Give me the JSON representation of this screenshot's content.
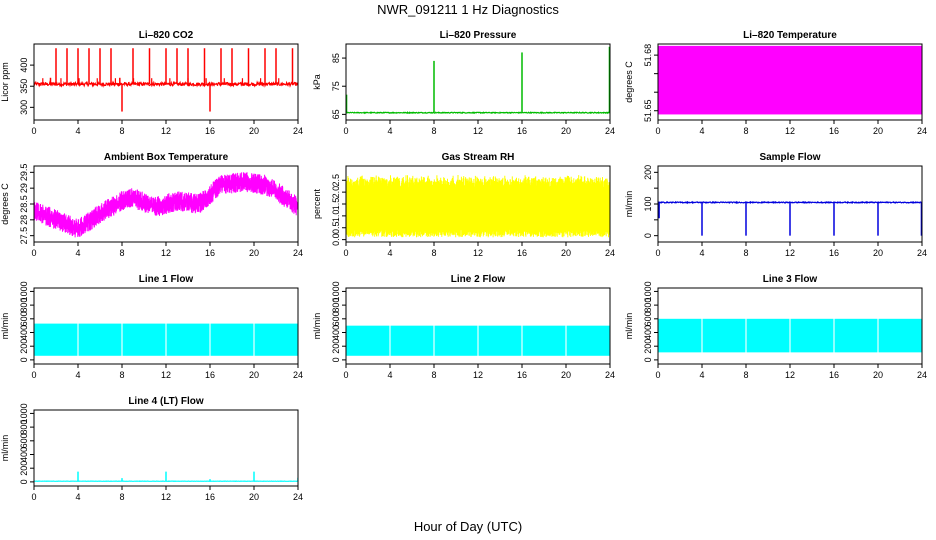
{
  "title": "NWR_091211  1 Hz Diagnostics",
  "xlabel": "Hour of Day (UTC)",
  "chart_data": [
    {
      "type": "line",
      "title": "Li–820 CO2",
      "ylabel": "Licor ppm",
      "color": "#ff0000",
      "xlim": [
        0,
        24
      ],
      "xticks": [
        0,
        4,
        8,
        12,
        16,
        20,
        24
      ],
      "ylim": [
        270,
        450
      ],
      "yticks": [
        300,
        350,
        400
      ],
      "pattern": "co2",
      "base": 355,
      "noise": 8,
      "spikes": [
        {
          "x": 1.5,
          "y": 370
        },
        {
          "x": 2.0,
          "y": 440
        },
        {
          "x": 3.0,
          "y": 440
        },
        {
          "x": 4.0,
          "y": 440
        },
        {
          "x": 5.0,
          "y": 440
        },
        {
          "x": 6.0,
          "y": 440
        },
        {
          "x": 7.0,
          "y": 440
        },
        {
          "x": 7.8,
          "y": 370
        },
        {
          "x": 8.0,
          "y": 290
        },
        {
          "x": 9.0,
          "y": 440
        },
        {
          "x": 10.5,
          "y": 440
        },
        {
          "x": 12.0,
          "y": 440
        },
        {
          "x": 13.0,
          "y": 440
        },
        {
          "x": 14.0,
          "y": 440
        },
        {
          "x": 15.5,
          "y": 440
        },
        {
          "x": 16.0,
          "y": 290
        },
        {
          "x": 17.0,
          "y": 440
        },
        {
          "x": 18.0,
          "y": 440
        },
        {
          "x": 19.5,
          "y": 440
        },
        {
          "x": 21.0,
          "y": 440
        },
        {
          "x": 22.0,
          "y": 440
        },
        {
          "x": 23.5,
          "y": 440
        }
      ]
    },
    {
      "type": "line",
      "title": "Li–820 Pressure",
      "ylabel": "kPa",
      "color": "#00bb00",
      "xlim": [
        0,
        24
      ],
      "xticks": [
        0,
        4,
        8,
        12,
        16,
        20,
        24
      ],
      "ylim": [
        63,
        90
      ],
      "yticks": [
        65,
        75,
        85
      ],
      "pattern": "pressure",
      "base": 65.6,
      "noise": 0.3,
      "spikes": [
        {
          "x": 0.05,
          "y": 72
        },
        {
          "x": 8.0,
          "y": 84
        },
        {
          "x": 16.0,
          "y": 87
        },
        {
          "x": 23.95,
          "y": 89
        }
      ]
    },
    {
      "type": "area",
      "title": "Li–820 Temperature",
      "ylabel": "degrees C",
      "color": "#ff00ff",
      "xlim": [
        0,
        24
      ],
      "xticks": [
        0,
        4,
        8,
        12,
        16,
        20,
        24
      ],
      "ylim": [
        51.645,
        51.686
      ],
      "yticks": [
        51.65,
        51.66,
        51.67,
        51.68
      ],
      "yticklabels": [
        "51.65",
        "",
        "",
        "51.68"
      ],
      "pattern": "fill",
      "band": [
        51.648,
        51.685
      ],
      "end": {
        "x": 24,
        "low": 51.648,
        "high": 51.67
      }
    },
    {
      "type": "line",
      "title": "Ambient Box Temperature",
      "ylabel": "degrees C",
      "color": "#ff00ff",
      "xlim": [
        0,
        24
      ],
      "xticks": [
        0,
        4,
        8,
        12,
        16,
        20,
        24
      ],
      "ylim": [
        27.3,
        29.7
      ],
      "yticks": [
        27.5,
        28,
        28.5,
        29,
        29.5
      ],
      "yticklabels": [
        "27.5",
        "28",
        "28.5",
        "29",
        "29.5"
      ],
      "pattern": "ambient",
      "curve": [
        {
          "x": 0,
          "y": 28.3
        },
        {
          "x": 2,
          "y": 28.0
        },
        {
          "x": 4,
          "y": 27.7
        },
        {
          "x": 6,
          "y": 28.2
        },
        {
          "x": 8,
          "y": 28.6
        },
        {
          "x": 9,
          "y": 28.7
        },
        {
          "x": 11,
          "y": 28.4
        },
        {
          "x": 13,
          "y": 28.6
        },
        {
          "x": 15,
          "y": 28.5
        },
        {
          "x": 17,
          "y": 29.1
        },
        {
          "x": 19,
          "y": 29.2
        },
        {
          "x": 21,
          "y": 29.1
        },
        {
          "x": 22.5,
          "y": 28.8
        },
        {
          "x": 24,
          "y": 28.4
        }
      ],
      "noise": 0.32
    },
    {
      "type": "line",
      "title": "Gas Stream RH",
      "ylabel": "percent",
      "color": "#ffff00",
      "xlim": [
        0,
        24
      ],
      "xticks": [
        0,
        4,
        8,
        12,
        16,
        20,
        24
      ],
      "ylim": [
        -0.1,
        3.1
      ],
      "yticks": [
        0,
        0.5,
        1,
        1.5,
        2,
        2.5
      ],
      "yticklabels": [
        "0.0",
        "0.5",
        "1.0",
        "1.5",
        "2.0",
        "2.5"
      ],
      "pattern": "band",
      "band": [
        0.1,
        2.6
      ],
      "noise": 0.3
    },
    {
      "type": "line",
      "title": "Sample Flow",
      "ylabel": "ml/min",
      "color": "#0000dd",
      "xlim": [
        0,
        24
      ],
      "xticks": [
        0,
        4,
        8,
        12,
        16,
        20,
        24
      ],
      "ylim": [
        -20,
        220
      ],
      "yticks": [
        0,
        50,
        100,
        150,
        200
      ],
      "yticklabels": [
        "0",
        "",
        "100",
        "",
        "200"
      ],
      "pattern": "flow",
      "base": 105,
      "noise": 3,
      "dips": [
        {
          "x": 0.1,
          "y": 55
        },
        {
          "x": 4.0,
          "y": 0
        },
        {
          "x": 8.0,
          "y": 0
        },
        {
          "x": 12.0,
          "y": 0
        },
        {
          "x": 16.0,
          "y": 0
        },
        {
          "x": 20.0,
          "y": 0
        },
        {
          "x": 23.95,
          "y": 0
        }
      ]
    },
    {
      "type": "area",
      "title": "Line 1 Flow",
      "ylabel": "ml/min",
      "color": "#00ffff",
      "xlim": [
        0,
        24
      ],
      "xticks": [
        0,
        4,
        8,
        12,
        16,
        20,
        24
      ],
      "ylim": [
        -60,
        1050
      ],
      "yticks": [
        0,
        200,
        400,
        600,
        800,
        1000
      ],
      "yticklabels": [
        "0",
        "200",
        "400",
        "600",
        "800",
        "1000"
      ],
      "pattern": "blocks",
      "low": 60,
      "high": 530,
      "gaps": [
        4,
        8,
        12,
        16,
        20
      ]
    },
    {
      "type": "area",
      "title": "Line 2 Flow",
      "ylabel": "ml/min",
      "color": "#00ffff",
      "xlim": [
        0,
        24
      ],
      "xticks": [
        0,
        4,
        8,
        12,
        16,
        20,
        24
      ],
      "ylim": [
        -60,
        1050
      ],
      "yticks": [
        0,
        200,
        400,
        600,
        800,
        1000
      ],
      "yticklabels": [
        "0",
        "200",
        "400",
        "600",
        "800",
        "1000"
      ],
      "pattern": "blocks",
      "low": 60,
      "high": 500,
      "gaps": [
        4,
        8,
        12,
        16,
        20
      ]
    },
    {
      "type": "area",
      "title": "Line 3 Flow",
      "ylabel": "ml/min",
      "color": "#00ffff",
      "xlim": [
        0,
        24
      ],
      "xticks": [
        0,
        4,
        8,
        12,
        16,
        20,
        24
      ],
      "ylim": [
        -60,
        1050
      ],
      "yticks": [
        0,
        200,
        400,
        600,
        800,
        1000
      ],
      "yticklabels": [
        "0",
        "200",
        "400",
        "600",
        "800",
        "1000"
      ],
      "pattern": "blocks",
      "low": 110,
      "high": 600,
      "gaps": [
        4,
        8,
        12,
        16,
        20
      ]
    },
    {
      "type": "line",
      "title": "Line 4 (LT) Flow",
      "ylabel": "ml/min",
      "color": "#00ffff",
      "xlim": [
        0,
        24
      ],
      "xticks": [
        0,
        4,
        8,
        12,
        16,
        20,
        24
      ],
      "ylim": [
        -60,
        1050
      ],
      "yticks": [
        0,
        200,
        400,
        600,
        800,
        1000
      ],
      "yticklabels": [
        "0",
        "200",
        "400",
        "600",
        "800",
        "1000"
      ],
      "pattern": "flow",
      "base": 10,
      "noise": 4,
      "dips": [
        {
          "x": 4.0,
          "y": 150
        },
        {
          "x": 8.0,
          "y": 55
        },
        {
          "x": 12.0,
          "y": 150
        },
        {
          "x": 16.0,
          "y": 40
        },
        {
          "x": 20.0,
          "y": 150
        },
        {
          "x": 24.0,
          "y": 60
        }
      ]
    }
  ]
}
